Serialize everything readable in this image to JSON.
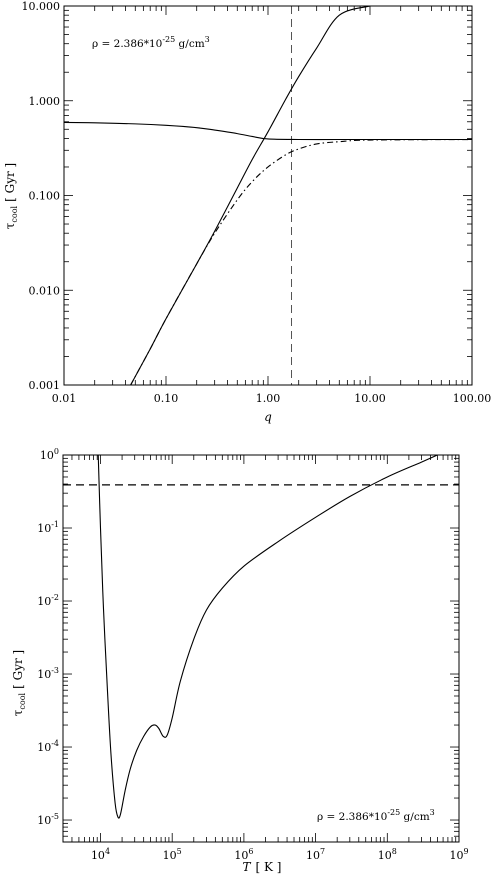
{
  "chart_data": [
    {
      "type": "line",
      "xscale": "log",
      "yscale": "log",
      "xlim": [
        0.01,
        100
      ],
      "ylim": [
        0.001,
        10
      ],
      "xlabel": "q",
      "ylabel": "τcool [ Gyr ]",
      "ylabel_main": "τ",
      "ylabel_sub": "cool",
      "ylabel_unit": "[ Gyr ]",
      "xticks": [
        0.01,
        0.1,
        1,
        10,
        100
      ],
      "xtick_labels": [
        "0.01",
        "0.10",
        "1.00",
        "10.00",
        "100.00"
      ],
      "yticks": [
        0.001,
        0.01,
        0.1,
        1,
        10
      ],
      "ytick_labels": [
        "0.001",
        "0.010",
        "0.100",
        "1.000",
        "10.000"
      ],
      "annotation": "ρ = 2.386*10-25 g/cm3",
      "annotation_parts": {
        "pre": "ρ = 2.386*10",
        "exp": "-25",
        "mid": " g/cm",
        "sup": "3"
      },
      "annotation_position": "top-left",
      "vline_x": 1.7,
      "series": [
        {
          "style": "solid",
          "x": [
            0.01,
            0.02,
            0.05,
            0.1,
            0.2,
            0.3,
            0.5,
            0.7,
            1,
            2,
            5,
            10,
            100
          ],
          "y": [
            0.59,
            0.585,
            0.57,
            0.55,
            0.52,
            0.49,
            0.45,
            0.42,
            0.395,
            0.39,
            0.39,
            0.39,
            0.39
          ]
        },
        {
          "style": "solid",
          "x": [
            0.045,
            0.07,
            0.1,
            0.2,
            0.3,
            0.5,
            0.7,
            1,
            1.5,
            2,
            3,
            5,
            10
          ],
          "y": [
            0.001,
            0.0024,
            0.005,
            0.019,
            0.042,
            0.12,
            0.24,
            0.47,
            1.05,
            1.8,
            3.6,
            8.0,
            10.0
          ]
        },
        {
          "style": "dashdot",
          "x": [
            0.045,
            0.07,
            0.1,
            0.2,
            0.3,
            0.5,
            0.7,
            1,
            1.5,
            2,
            3,
            5,
            10,
            100
          ],
          "y": [
            0.001,
            0.0024,
            0.005,
            0.019,
            0.04,
            0.09,
            0.14,
            0.2,
            0.27,
            0.31,
            0.35,
            0.37,
            0.385,
            0.39
          ]
        }
      ]
    },
    {
      "type": "line",
      "xscale": "log",
      "yscale": "log",
      "xlim": [
        3000,
        1000000000
      ],
      "ylim": [
        5e-06,
        1
      ],
      "xlabel": "T [ K ]",
      "xlabel_main": "T",
      "xlabel_unit": "[ K ]",
      "ylabel": "τcool [ Gyr ]",
      "ylabel_main": "τ",
      "ylabel_sub": "cool",
      "ylabel_unit": "[ Gyr ]",
      "xticks": [
        10000,
        100000,
        1000000,
        10000000,
        100000000,
        1000000000
      ],
      "xtick_labels": [
        [
          "10",
          "4"
        ],
        [
          "10",
          "5"
        ],
        [
          "10",
          "6"
        ],
        [
          "10",
          "7"
        ],
        [
          "10",
          "8"
        ],
        [
          "10",
          "9"
        ]
      ],
      "yticks": [
        1e-05,
        0.0001,
        0.001,
        0.01,
        0.1,
        1
      ],
      "ytick_labels": [
        [
          "10",
          "-5"
        ],
        [
          "10",
          "-4"
        ],
        [
          "10",
          "-3"
        ],
        [
          "10",
          "-2"
        ],
        [
          "10",
          "-1"
        ],
        [
          "10",
          "0"
        ]
      ],
      "annotation": "ρ = 2.386*10-25 g/cm3",
      "annotation_parts": {
        "pre": "ρ = 2.386*10",
        "exp": "-25",
        "mid": " g/cm",
        "sup": "3"
      },
      "annotation_position": "bottom-right",
      "hline_y": 0.39,
      "series": [
        {
          "style": "solid",
          "x": [
            9300,
            10000,
            11000,
            12500,
            14000,
            16000,
            17500,
            19000,
            22000,
            26000,
            32000,
            40000,
            50000,
            58000,
            65000,
            75000,
            85000,
            100000,
            130000,
            200000,
            300000,
            500000,
            1000000,
            3000000,
            10000000,
            30000000,
            100000000,
            300000000,
            500000000
          ],
          "y": [
            1.0,
            0.1,
            0.008,
            0.0006,
            8e-05,
            1.7e-05,
            1.1e-05,
            1.2e-05,
            2.5e-05,
            5e-05,
            9e-05,
            0.00014,
            0.00019,
            0.0002,
            0.00018,
            0.00014,
            0.000145,
            0.00025,
            0.0008,
            0.003,
            0.0075,
            0.015,
            0.03,
            0.065,
            0.14,
            0.27,
            0.5,
            0.8,
            1.0
          ]
        }
      ]
    }
  ]
}
